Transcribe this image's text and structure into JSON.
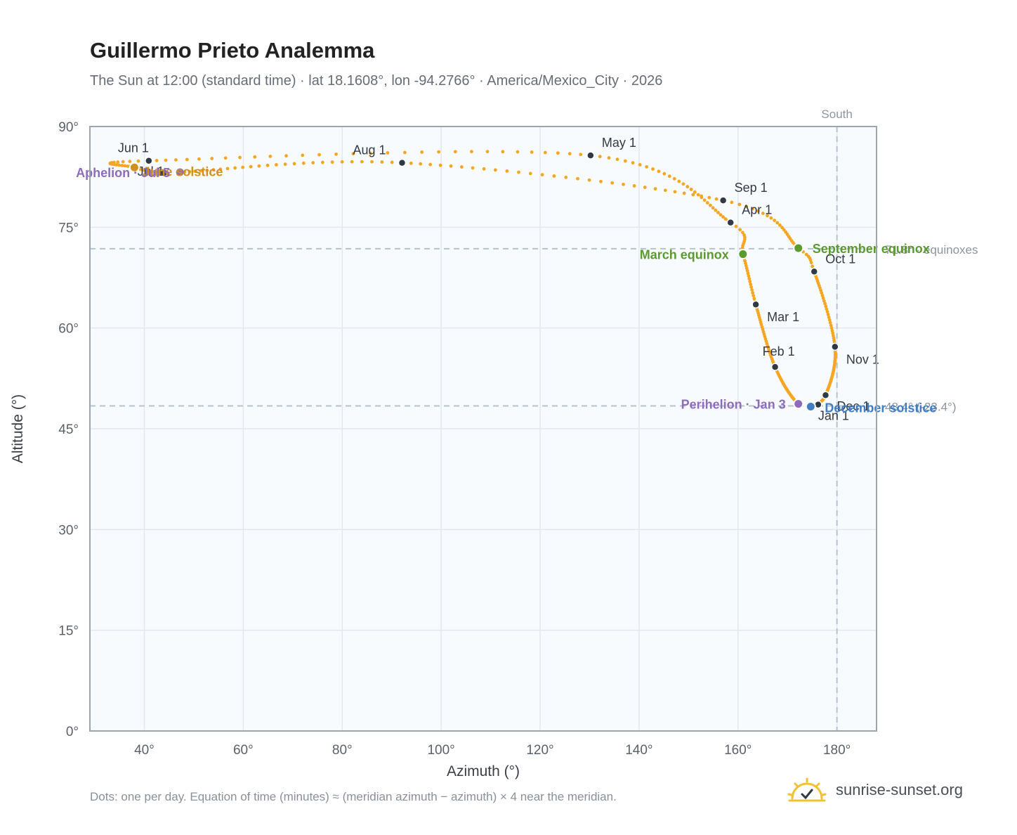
{
  "title": "Guillermo Prieto Analemma",
  "subtitle": "The Sun at 12:00 (standard time) · lat 18.1608°, lon -94.2766° · America/Mexico_City · 2026",
  "footnote": "Dots: one per day. Equation of time (minutes) ≈ (meridian azimuth − azimuth) × 4 near the meridian.",
  "brand": {
    "name": "sunrise-sunset.org",
    "icon": "sun-check-icon"
  },
  "colors": {
    "curve": "#f5a623",
    "month_dot": "#2f3a45",
    "equinox": "#5a9a2e",
    "solstice_dec": "#3f7ec4",
    "apsis": "#8f6bbd",
    "solstice_jun_label": "#d0901a",
    "plot_bg": "#f8fbfd",
    "grid": "#e3e8ee",
    "frame": "#9aa6b2",
    "ref_line": "#b6c2cc"
  },
  "chart_data": {
    "type": "scatter",
    "title": "Guillermo Prieto Analemma",
    "xlabel": "Azimuth (°)",
    "ylabel": "Altitude (°)",
    "xlim": [
      29,
      188
    ],
    "ylim": [
      0,
      90
    ],
    "x_ticks": [
      40,
      60,
      80,
      100,
      120,
      140,
      160,
      180
    ],
    "x_tick_labels": [
      "40°",
      "60°",
      "80°",
      "100°",
      "120°",
      "140°",
      "160°",
      "180°"
    ],
    "y_ticks": [
      0,
      15,
      30,
      45,
      60,
      75,
      90
    ],
    "y_tick_labels": [
      "0°",
      "15°",
      "30°",
      "45°",
      "60°",
      "75°",
      "90°"
    ],
    "grid": true,
    "meridian": {
      "azimuth": 180,
      "label": "South"
    },
    "reference_lines": [
      {
        "altitude": 71.8,
        "label": "71.8° · equinoxes"
      },
      {
        "altitude": 48.4,
        "label": "48.4° (-23.4°)"
      }
    ],
    "months": [
      {
        "label": "Jan 1",
        "az": 176.2,
        "alt": 48.6
      },
      {
        "label": "Feb 1",
        "az": 167.5,
        "alt": 54.2
      },
      {
        "label": "Mar 1",
        "az": 163.6,
        "alt": 63.5
      },
      {
        "label": "Apr 1",
        "az": 158.5,
        "alt": 75.7
      },
      {
        "label": "May 1",
        "az": 130.2,
        "alt": 85.7
      },
      {
        "label": "Jun 1",
        "az": 40.9,
        "alt": 84.9
      },
      {
        "label": "Jul 1",
        "az": 44.0,
        "alt": 83.1
      },
      {
        "label": "Aug 1",
        "az": 92.1,
        "alt": 84.6
      },
      {
        "label": "Sep 1",
        "az": 157.0,
        "alt": 79.0
      },
      {
        "label": "Oct 1",
        "az": 175.4,
        "alt": 68.4
      },
      {
        "label": "Nov 1",
        "az": 179.6,
        "alt": 57.2
      },
      {
        "label": "Dec 1",
        "az": 177.7,
        "alt": 50.0
      }
    ],
    "events": [
      {
        "label": "March equinox",
        "az": 161.0,
        "alt": 71.0,
        "kind": "equinox"
      },
      {
        "label": "September equinox",
        "az": 172.2,
        "alt": 71.9,
        "kind": "equinox"
      },
      {
        "label": "June solstice",
        "az": 38.0,
        "alt": 83.9,
        "kind": "solstice_jun"
      },
      {
        "label": "December solstice",
        "az": 174.7,
        "alt": 48.3,
        "kind": "solstice_dec"
      },
      {
        "label": "Perihelion · Jan 3",
        "az": 172.2,
        "alt": 48.7,
        "kind": "apsis"
      },
      {
        "label": "Aphelion · Jul 5",
        "az": 47.2,
        "alt": 83.2,
        "kind": "apsis"
      }
    ]
  }
}
